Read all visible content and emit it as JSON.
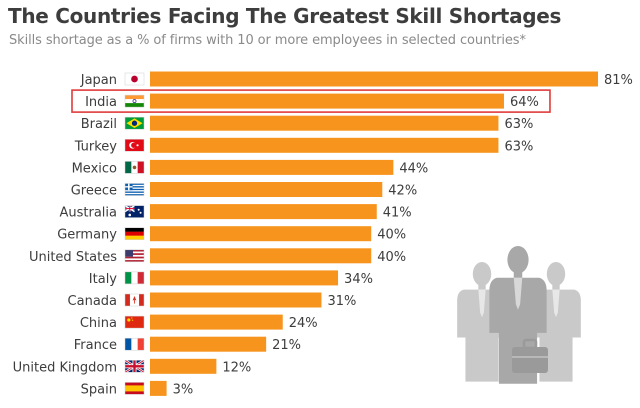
{
  "header": {
    "title": "The Countries Facing The Greatest Skill Shortages",
    "subtitle": "Skills shortage as a % of firms with 10 or more employees in selected countries*"
  },
  "colors": {
    "bar": "#f7941d",
    "highlight_box": "#e03a3a",
    "text": "#3d3d3d",
    "people_light": "#c9c9c9",
    "people_dark": "#a8a8a8"
  },
  "decoration": {
    "illustration": "business-people-with-briefcase-icon"
  },
  "highlight": {
    "category": "India"
  },
  "chart_data": {
    "type": "bar",
    "orientation": "horizontal",
    "categories": [
      "Japan",
      "India",
      "Brazil",
      "Turkey",
      "Mexico",
      "Greece",
      "Australia",
      "Germany",
      "United States",
      "Italy",
      "Canada",
      "China",
      "France",
      "United Kingdom",
      "Spain"
    ],
    "values": [
      81,
      64,
      63,
      63,
      44,
      42,
      41,
      40,
      40,
      34,
      31,
      24,
      21,
      12,
      3
    ],
    "data_labels": [
      "81%",
      "64%",
      "63%",
      "63%",
      "44%",
      "42%",
      "41%",
      "40%",
      "40%",
      "34%",
      "31%",
      "24%",
      "21%",
      "12%",
      "3%"
    ],
    "flags": [
      "flag-japan-icon",
      "flag-india-icon",
      "flag-brazil-icon",
      "flag-turkey-icon",
      "flag-mexico-icon",
      "flag-greece-icon",
      "flag-australia-icon",
      "flag-germany-icon",
      "flag-united-states-icon",
      "flag-italy-icon",
      "flag-canada-icon",
      "flag-china-icon",
      "flag-france-icon",
      "flag-united-kingdom-icon",
      "flag-spain-icon"
    ],
    "xlim": [
      0,
      81
    ],
    "grid": false,
    "legend": "none"
  }
}
